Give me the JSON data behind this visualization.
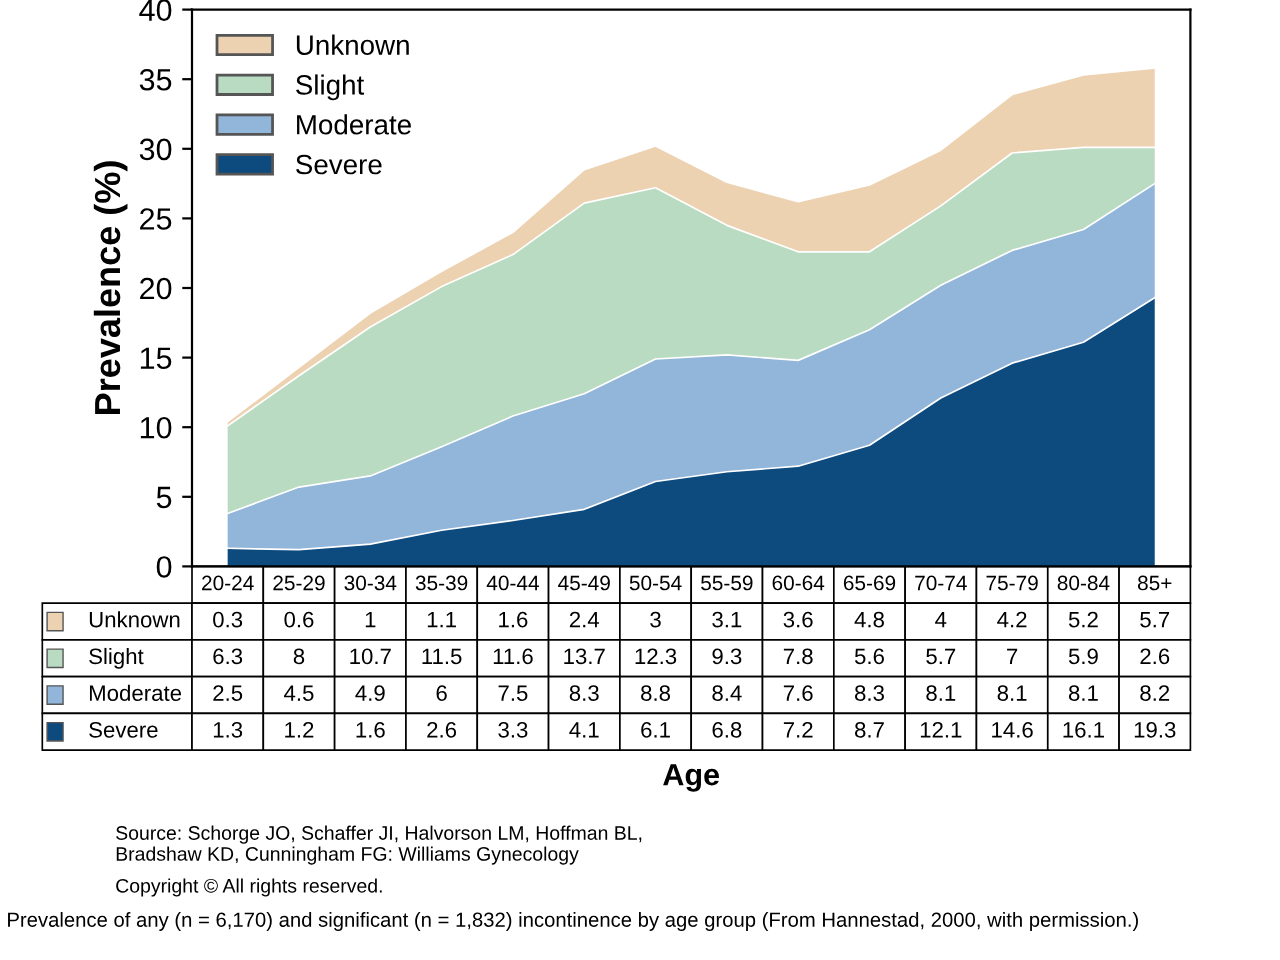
{
  "chart_data": {
    "type": "area",
    "stacked": true,
    "ylabel": "Prevalence (%)",
    "categories": [
      "20-24",
      "25-29",
      "30-34",
      "35-39",
      "40-44",
      "45-49",
      "50-54",
      "55-59",
      "60-64",
      "65-69",
      "70-74",
      "75-79",
      "80-84",
      "85+"
    ],
    "series": [
      {
        "name": "Severe",
        "color": "#0d4a7e",
        "values": [
          1.3,
          1.2,
          1.6,
          2.6,
          3.3,
          4.1,
          6.1,
          6.8,
          7.2,
          8.7,
          12.1,
          14.6,
          16.1,
          19.3
        ]
      },
      {
        "name": "Moderate",
        "color": "#92b5da",
        "values": [
          2.5,
          4.5,
          4.9,
          6,
          7.5,
          8.3,
          8.8,
          8.4,
          7.6,
          8.3,
          8.1,
          8.1,
          8.1,
          8.2
        ]
      },
      {
        "name": "Slight",
        "color": "#b9dbc2",
        "values": [
          6.3,
          8,
          10.7,
          11.5,
          11.6,
          13.7,
          12.3,
          9.3,
          7.8,
          5.6,
          5.7,
          7,
          5.9,
          2.6
        ]
      },
      {
        "name": "Unknown",
        "color": "#edd2b2",
        "values": [
          0.3,
          0.6,
          1,
          1.1,
          1.6,
          2.4,
          3,
          3.1,
          3.6,
          4.8,
          4,
          4.2,
          5.2,
          5.7
        ]
      }
    ],
    "ylim": [
      0,
      40
    ],
    "yticks": [
      0,
      5,
      10,
      15,
      20,
      25,
      30,
      35,
      40
    ],
    "data_labels": true,
    "legend": "top left",
    "annotations": [
      "Age",
      "Source: Schorge JO, Schaffer JI, Halvorson LM, Hoffman BL,\nBradshaw KD, Cunningham FG: Williams Gynecology",
      "Copyright © All rights reserved.",
      "Prevalence of any (n = 6,170) and significant (n = 1,832) incontinence by age group (From Hannestad, 2000, with permission.)"
    ]
  }
}
